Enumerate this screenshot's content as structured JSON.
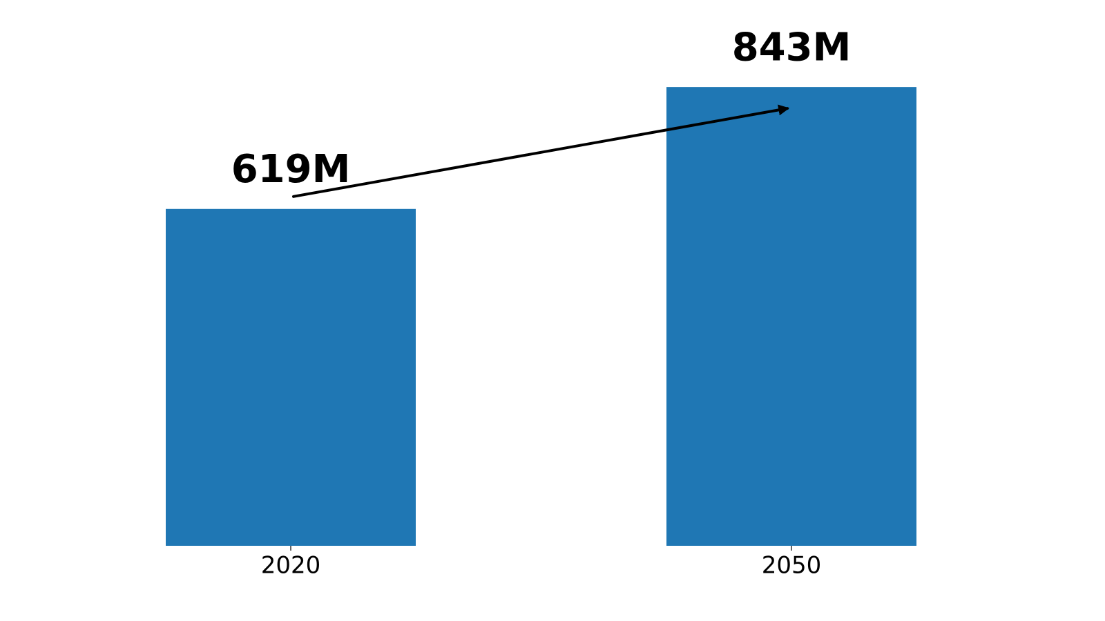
{
  "chart_data": {
    "type": "bar",
    "categories": [
      "2020",
      "2050"
    ],
    "values": [
      619,
      843
    ],
    "value_labels": [
      "619M",
      "843M"
    ],
    "color": "#1f77b4",
    "ylim": [
      0,
      885
    ],
    "trend_arrow": true
  }
}
